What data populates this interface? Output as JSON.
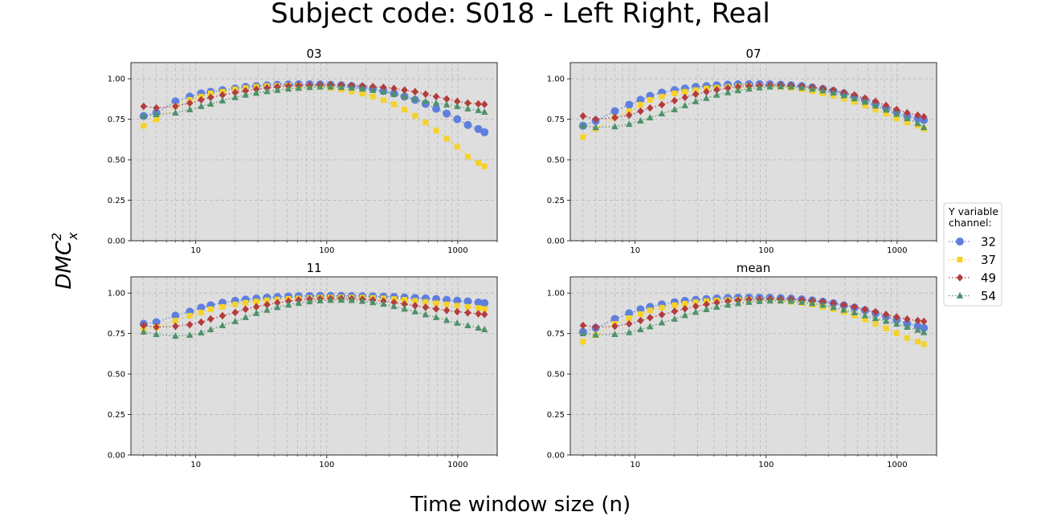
{
  "title": "Subject code: S018 - Left Right, Real",
  "xlabel": "Time window size (n)",
  "ylabel_base": "DMC",
  "ylabel_sup": "2",
  "ylabel_sub": "x",
  "legend": {
    "title_lines": [
      "Y variable",
      "channel:"
    ],
    "placement": "right"
  },
  "chart_data": {
    "type": "scatter",
    "x_scale": "log",
    "x_ticks": [
      10,
      100,
      1000
    ],
    "x_tick_labels": [
      "10",
      "100",
      "1000"
    ],
    "y_ticks": [
      0.0,
      0.25,
      0.5,
      0.75,
      1.0
    ],
    "y_tick_labels": [
      "0.00",
      "0.25",
      "0.50",
      "0.75",
      "1.00"
    ],
    "xlim": [
      3.2,
      2000
    ],
    "ylim": [
      0,
      1.1
    ],
    "grid": true,
    "x": [
      4,
      5,
      7,
      9,
      11,
      13,
      16,
      20,
      24,
      29,
      35,
      42,
      51,
      61,
      74,
      89,
      107,
      129,
      155,
      187,
      225,
      271,
      326,
      392,
      472,
      568,
      684,
      823,
      991,
      1193,
      1436,
      1600
    ],
    "series_styles": [
      {
        "name": "32",
        "color": "#5f7fdd",
        "marker": "circle"
      },
      {
        "name": "37",
        "color": "#f5d22a",
        "marker": "square"
      },
      {
        "name": "49",
        "color": "#b43c3c",
        "marker": "diamond"
      },
      {
        "name": "54",
        "color": "#4f9168",
        "marker": "triangle"
      }
    ],
    "panels": [
      {
        "title": "03",
        "series": [
          {
            "name": "32",
            "values": [
              0.77,
              0.79,
              0.86,
              0.89,
              0.91,
              0.92,
              0.93,
              0.94,
              0.95,
              0.955,
              0.96,
              0.963,
              0.965,
              0.966,
              0.966,
              0.965,
              0.963,
              0.96,
              0.955,
              0.948,
              0.938,
              0.925,
              0.91,
              0.89,
              0.87,
              0.845,
              0.815,
              0.785,
              0.75,
              0.715,
              0.69,
              0.67
            ]
          },
          {
            "name": "37",
            "values": [
              0.71,
              0.75,
              0.83,
              0.87,
              0.89,
              0.91,
              0.92,
              0.935,
              0.943,
              0.95,
              0.955,
              0.957,
              0.958,
              0.957,
              0.955,
              0.95,
              0.943,
              0.934,
              0.922,
              0.908,
              0.89,
              0.868,
              0.842,
              0.81,
              0.772,
              0.73,
              0.68,
              0.63,
              0.58,
              0.52,
              0.48,
              0.46
            ]
          },
          {
            "name": "49",
            "values": [
              0.83,
              0.82,
              0.83,
              0.85,
              0.87,
              0.885,
              0.9,
              0.915,
              0.925,
              0.935,
              0.943,
              0.95,
              0.955,
              0.958,
              0.96,
              0.962,
              0.962,
              0.961,
              0.959,
              0.956,
              0.952,
              0.947,
              0.94,
              0.93,
              0.92,
              0.905,
              0.89,
              0.875,
              0.86,
              0.85,
              0.845,
              0.842
            ]
          },
          {
            "name": "54",
            "values": [
              0.77,
              0.78,
              0.79,
              0.81,
              0.83,
              0.845,
              0.865,
              0.885,
              0.9,
              0.912,
              0.922,
              0.93,
              0.938,
              0.943,
              0.947,
              0.95,
              0.95,
              0.948,
              0.944,
              0.938,
              0.93,
              0.92,
              0.905,
              0.89,
              0.875,
              0.86,
              0.85,
              0.84,
              0.83,
              0.815,
              0.805,
              0.795
            ]
          }
        ]
      },
      {
        "title": "07",
        "series": [
          {
            "name": "32",
            "values": [
              0.71,
              0.74,
              0.8,
              0.84,
              0.87,
              0.895,
              0.915,
              0.93,
              0.94,
              0.95,
              0.955,
              0.96,
              0.964,
              0.966,
              0.967,
              0.967,
              0.966,
              0.964,
              0.96,
              0.955,
              0.947,
              0.937,
              0.925,
              0.91,
              0.89,
              0.87,
              0.845,
              0.82,
              0.795,
              0.77,
              0.755,
              0.745
            ]
          },
          {
            "name": "37",
            "values": [
              0.64,
              0.69,
              0.76,
              0.8,
              0.84,
              0.87,
              0.89,
              0.91,
              0.92,
              0.93,
              0.94,
              0.945,
              0.95,
              0.953,
              0.955,
              0.955,
              0.954,
              0.95,
              0.944,
              0.935,
              0.923,
              0.91,
              0.895,
              0.877,
              0.858,
              0.835,
              0.81,
              0.785,
              0.755,
              0.73,
              0.71,
              0.69
            ]
          },
          {
            "name": "49",
            "values": [
              0.77,
              0.75,
              0.76,
              0.775,
              0.8,
              0.82,
              0.84,
              0.865,
              0.885,
              0.905,
              0.92,
              0.932,
              0.942,
              0.95,
              0.955,
              0.958,
              0.96,
              0.96,
              0.958,
              0.954,
              0.948,
              0.94,
              0.93,
              0.915,
              0.9,
              0.88,
              0.86,
              0.835,
              0.81,
              0.79,
              0.775,
              0.765
            ]
          },
          {
            "name": "54",
            "values": [
              0.71,
              0.7,
              0.705,
              0.72,
              0.74,
              0.76,
              0.785,
              0.81,
              0.835,
              0.86,
              0.88,
              0.9,
              0.915,
              0.928,
              0.938,
              0.945,
              0.95,
              0.952,
              0.95,
              0.945,
              0.937,
              0.927,
              0.913,
              0.897,
              0.878,
              0.857,
              0.833,
              0.808,
              0.782,
              0.755,
              0.725,
              0.7
            ]
          }
        ]
      },
      {
        "title": "11",
        "series": [
          {
            "name": "32",
            "values": [
              0.81,
              0.82,
              0.86,
              0.885,
              0.91,
              0.925,
              0.94,
              0.952,
              0.96,
              0.966,
              0.972,
              0.976,
              0.979,
              0.981,
              0.982,
              0.983,
              0.983,
              0.983,
              0.982,
              0.981,
              0.98,
              0.978,
              0.976,
              0.973,
              0.97,
              0.967,
              0.963,
              0.958,
              0.953,
              0.948,
              0.942,
              0.938
            ]
          },
          {
            "name": "37",
            "values": [
              0.78,
              0.79,
              0.83,
              0.86,
              0.88,
              0.9,
              0.915,
              0.93,
              0.94,
              0.948,
              0.955,
              0.96,
              0.964,
              0.967,
              0.97,
              0.972,
              0.973,
              0.973,
              0.973,
              0.972,
              0.97,
              0.967,
              0.963,
              0.958,
              0.952,
              0.945,
              0.937,
              0.93,
              0.922,
              0.915,
              0.908,
              0.902
            ]
          },
          {
            "name": "49",
            "values": [
              0.8,
              0.79,
              0.795,
              0.805,
              0.82,
              0.84,
              0.86,
              0.88,
              0.9,
              0.915,
              0.928,
              0.94,
              0.95,
              0.957,
              0.962,
              0.965,
              0.966,
              0.966,
              0.965,
              0.962,
              0.957,
              0.95,
              0.942,
              0.932,
              0.922,
              0.912,
              0.902,
              0.893,
              0.885,
              0.878,
              0.872,
              0.868
            ]
          },
          {
            "name": "54",
            "values": [
              0.76,
              0.745,
              0.735,
              0.74,
              0.755,
              0.775,
              0.8,
              0.825,
              0.85,
              0.875,
              0.895,
              0.912,
              0.927,
              0.938,
              0.947,
              0.953,
              0.956,
              0.957,
              0.955,
              0.95,
              0.942,
              0.932,
              0.918,
              0.902,
              0.885,
              0.867,
              0.85,
              0.832,
              0.815,
              0.8,
              0.785,
              0.775
            ]
          }
        ]
      },
      {
        "title": "mean",
        "series": [
          {
            "name": "32",
            "values": [
              0.76,
              0.785,
              0.84,
              0.875,
              0.9,
              0.915,
              0.93,
              0.943,
              0.952,
              0.958,
              0.963,
              0.967,
              0.97,
              0.972,
              0.972,
              0.972,
              0.971,
              0.969,
              0.966,
              0.961,
              0.955,
              0.947,
              0.937,
              0.924,
              0.91,
              0.894,
              0.875,
              0.854,
              0.833,
              0.811,
              0.795,
              0.784
            ]
          },
          {
            "name": "37",
            "values": [
              0.7,
              0.74,
              0.81,
              0.845,
              0.87,
              0.893,
              0.91,
              0.925,
              0.934,
              0.943,
              0.95,
              0.954,
              0.957,
              0.959,
              0.96,
              0.959,
              0.957,
              0.952,
              0.946,
              0.938,
              0.928,
              0.915,
              0.9,
              0.882,
              0.861,
              0.837,
              0.809,
              0.782,
              0.752,
              0.722,
              0.7,
              0.684
            ]
          },
          {
            "name": "49",
            "values": [
              0.8,
              0.79,
              0.795,
              0.81,
              0.83,
              0.848,
              0.867,
              0.887,
              0.903,
              0.918,
              0.93,
              0.941,
              0.949,
              0.955,
              0.959,
              0.962,
              0.963,
              0.962,
              0.961,
              0.957,
              0.952,
              0.946,
              0.937,
              0.926,
              0.914,
              0.899,
              0.884,
              0.868,
              0.852,
              0.839,
              0.83,
              0.825
            ]
          },
          {
            "name": "54",
            "values": [
              0.75,
              0.742,
              0.745,
              0.757,
              0.775,
              0.793,
              0.817,
              0.84,
              0.862,
              0.882,
              0.899,
              0.914,
              0.927,
              0.936,
              0.944,
              0.949,
              0.952,
              0.952,
              0.95,
              0.944,
              0.936,
              0.926,
              0.912,
              0.896,
              0.879,
              0.861,
              0.844,
              0.827,
              0.809,
              0.79,
              0.772,
              0.757
            ]
          }
        ]
      }
    ]
  }
}
